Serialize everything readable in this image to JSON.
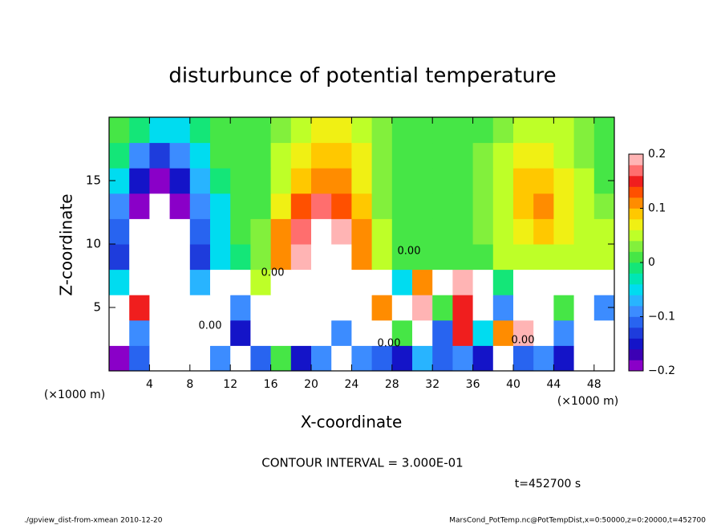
{
  "chart_data": {
    "type": "heatmap",
    "title": "disturbunce of potential temperature",
    "xlabel": "X-coordinate",
    "ylabel": "Z-coordinate",
    "unit_labels": [
      "(×1000 m)",
      "(×1000 m)"
    ],
    "note": "CONTOUR INTERVAL = 3.000E-01",
    "time_label": "t=452700 s",
    "footer_left": "./gpview_dist-from-xmean  2010-12-20",
    "footer_right": "MarsCond_PotTemp.nc@PotTempDist,x=0:50000,z=0:20000,t=452700",
    "contour_labels": [
      "0.00",
      "0.00",
      "0.00",
      "0.00",
      "0.00"
    ],
    "xlim": [
      0,
      50
    ],
    "ylim": [
      0,
      20
    ],
    "xticks": [
      4,
      8,
      12,
      16,
      20,
      24,
      28,
      32,
      36,
      40,
      44,
      48
    ],
    "yticks": [
      5,
      10,
      15
    ],
    "x": [
      1,
      3,
      5,
      7,
      9,
      11,
      13,
      15,
      17,
      19,
      21,
      23,
      25,
      27,
      29,
      31,
      33,
      35,
      37,
      39,
      41,
      43,
      45,
      47,
      49
    ],
    "y": [
      1,
      3,
      5,
      7,
      9,
      11,
      13,
      15,
      17,
      19
    ],
    "z": [
      [
        -0.2,
        -0.12,
        -0.3,
        0.3,
        0.3,
        -0.1,
        0.3,
        -0.12,
        0.0,
        -0.15,
        -0.1,
        -0.3,
        -0.1,
        -0.12,
        -0.15,
        -0.08,
        -0.12,
        -0.1,
        -0.15,
        0.3,
        -0.12,
        -0.1,
        -0.15,
        0.3,
        0.3
      ],
      [
        0.3,
        -0.1,
        -0.3,
        0.3,
        0.3,
        0.3,
        -0.15,
        0.3,
        0.3,
        -0.3,
        -0.3,
        -0.1,
        0.3,
        0.3,
        0.0,
        0.3,
        -0.12,
        0.15,
        -0.05,
        0.1,
        0.2,
        0.3,
        -0.1,
        0.3,
        0.3
      ],
      [
        0.3,
        0.15,
        -0.3,
        0.25,
        -0.3,
        0.3,
        -0.1,
        0.3,
        -0.3,
        -0.3,
        -0.3,
        0.3,
        0.3,
        0.1,
        0.3,
        0.2,
        0.0,
        0.15,
        0.3,
        -0.1,
        0.3,
        0.3,
        0.0,
        0.3,
        -0.1
      ],
      [
        -0.05,
        -0.3,
        -0.3,
        -0.3,
        -0.08,
        -0.3,
        -0.3,
        0.05,
        -0.3,
        -0.3,
        -0.3,
        -0.3,
        -0.3,
        0.3,
        -0.05,
        0.1,
        0.3,
        0.2,
        0.3,
        -0.02,
        0.3,
        0.3,
        -0.3,
        0.3,
        0.3
      ],
      [
        -0.14,
        -0.25,
        -0.3,
        -0.25,
        -0.14,
        -0.06,
        -0.01,
        0.03,
        0.12,
        0.2,
        0.25,
        0.24,
        0.12,
        0.04,
        0.01,
        0.0,
        0.0,
        0.01,
        0.02,
        0.04,
        0.05,
        0.05,
        0.04,
        0.04,
        0.04
      ],
      [
        -0.12,
        -0.22,
        -0.3,
        -0.22,
        -0.12,
        -0.05,
        0.0,
        0.03,
        0.1,
        0.17,
        0.21,
        0.18,
        0.1,
        0.04,
        0.01,
        0.0,
        0.0,
        0.01,
        0.03,
        0.05,
        0.07,
        0.08,
        0.06,
        0.05,
        0.04
      ],
      [
        -0.1,
        -0.19,
        -0.23,
        -0.19,
        -0.1,
        -0.04,
        0.0,
        0.02,
        0.07,
        0.13,
        0.16,
        0.13,
        0.08,
        0.03,
        0.01,
        0.0,
        0.0,
        0.01,
        0.03,
        0.05,
        0.08,
        0.1,
        0.07,
        0.05,
        0.03
      ],
      [
        -0.06,
        -0.15,
        -0.19,
        -0.15,
        -0.07,
        -0.02,
        0.0,
        0.02,
        0.05,
        0.09,
        0.12,
        0.1,
        0.07,
        0.03,
        0.01,
        0.0,
        0.0,
        0.01,
        0.03,
        0.05,
        0.08,
        0.09,
        0.06,
        0.04,
        0.02
      ],
      [
        -0.02,
        -0.1,
        -0.14,
        -0.1,
        -0.04,
        0.0,
        0.01,
        0.02,
        0.04,
        0.07,
        0.09,
        0.08,
        0.06,
        0.03,
        0.01,
        0.0,
        0.0,
        0.01,
        0.03,
        0.04,
        0.06,
        0.07,
        0.05,
        0.03,
        0.02
      ],
      [
        0.0,
        -0.02,
        -0.06,
        -0.06,
        -0.02,
        0.0,
        0.01,
        0.02,
        0.03,
        0.04,
        0.06,
        0.07,
        0.05,
        0.03,
        0.01,
        0.0,
        0.0,
        0.01,
        0.02,
        0.03,
        0.04,
        0.05,
        0.04,
        0.03,
        0.02
      ]
    ],
    "zlim": [
      -0.2,
      0.2
    ],
    "zticks": [
      {
        "value": -0.2,
        "label": "−0.2"
      },
      {
        "value": -0.1,
        "label": "−0.1"
      },
      0,
      0.1,
      0.2
    ],
    "colors": [
      "#8a00c8",
      "#3c00b4",
      "#1414c8",
      "#1e3cdc",
      "#2864f0",
      "#3c8cff",
      "#28b4ff",
      "#00dcf0",
      "#00e6b4",
      "#14e678",
      "#46e646",
      "#82f03c",
      "#beff28",
      "#f0f014",
      "#ffc800",
      "#ff8c00",
      "#ff5000",
      "#f01e1e",
      "#ff6e6e",
      "#ffb4b4"
    ],
    "out_of_range_color": "#ffffff"
  }
}
